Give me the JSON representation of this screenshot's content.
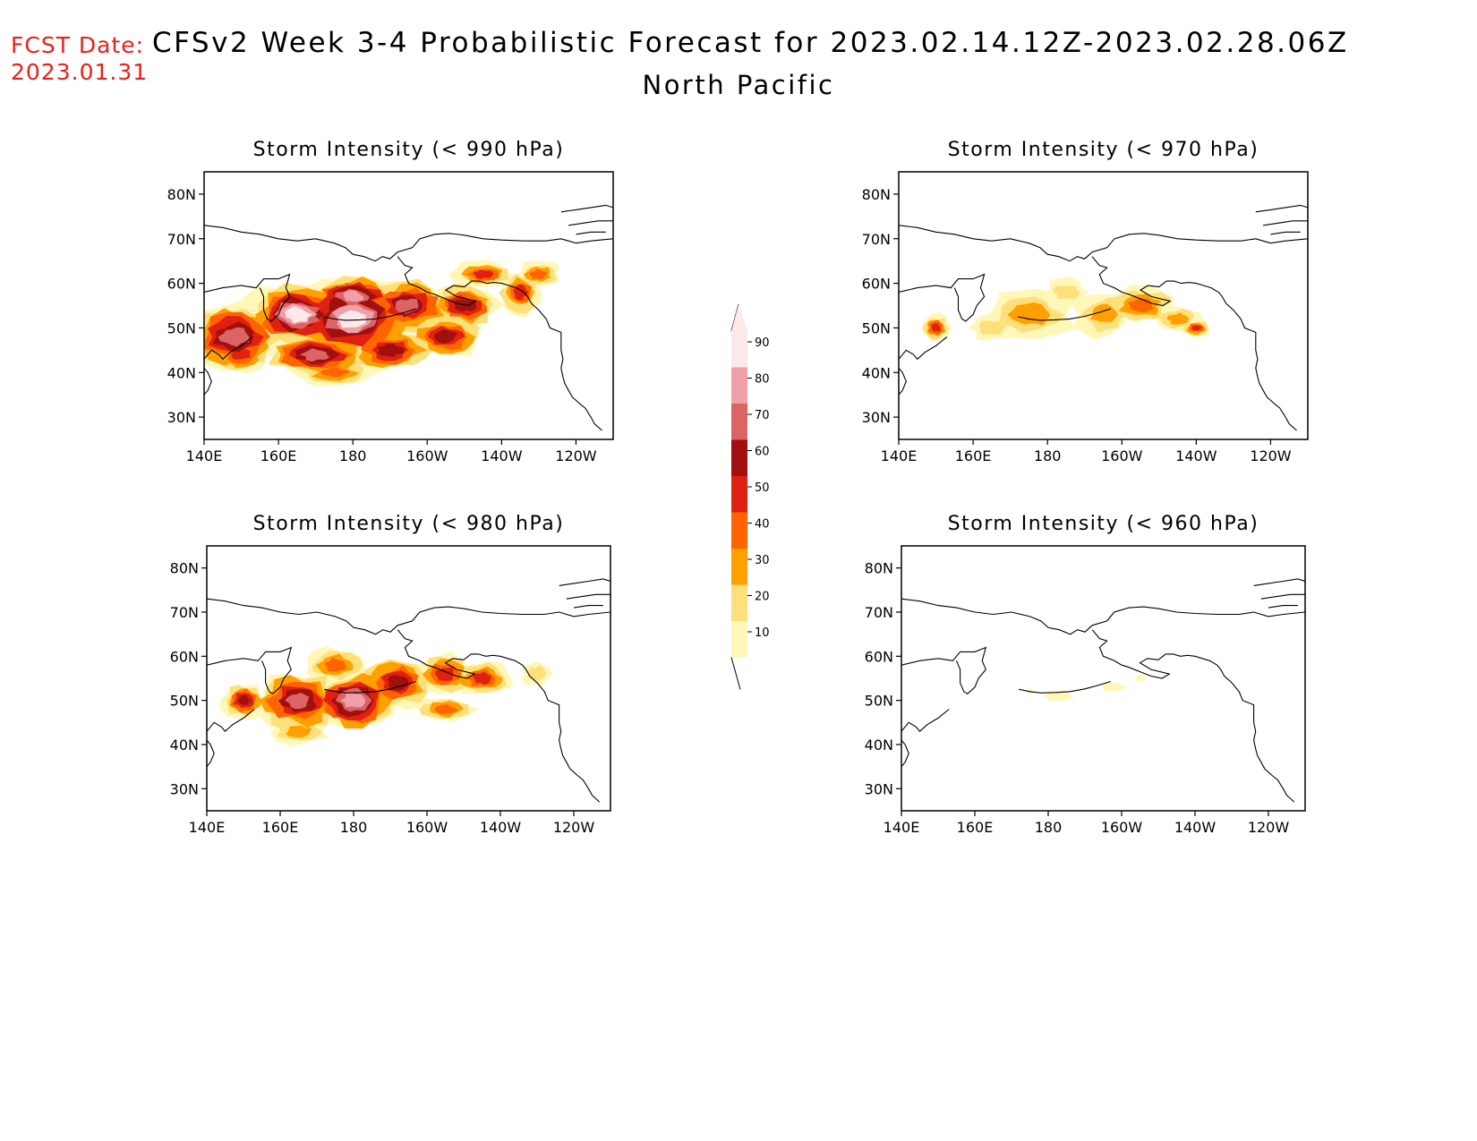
{
  "header": {
    "fcst_label": "FCST Date:",
    "fcst_date": "2023.01.31",
    "title": "CFSv2 Week 3-4 Probabilistic Forecast for 2023.02.14.12Z-2023.02.28.06Z",
    "region": "North Pacific"
  },
  "panels": [
    {
      "title": "Storm Intensity (< 990 hPa)",
      "max_category": 90
    },
    {
      "title": "Storm Intensity (< 970 hPa)",
      "max_category": 60
    },
    {
      "title": "Storm Intensity (< 980 hPa)",
      "max_category": 80
    },
    {
      "title": "Storm Intensity (< 960 hPa)",
      "max_category": 20
    }
  ],
  "axes": {
    "lat_labels": [
      "80N",
      "70N",
      "60N",
      "50N",
      "40N",
      "30N"
    ],
    "lon_labels": [
      "140E",
      "160E",
      "180",
      "160W",
      "140W",
      "120W"
    ]
  },
  "colorbar": {
    "labels": [
      "90",
      "80",
      "70",
      "60",
      "50",
      "40",
      "30",
      "20",
      "10"
    ],
    "colors": [
      "#fde8ea",
      "#f0a0a8",
      "#dc6464",
      "#a01010",
      "#e02010",
      "#ff6400",
      "#ffa000",
      "#fde07a",
      "#fff7b8"
    ]
  }
}
